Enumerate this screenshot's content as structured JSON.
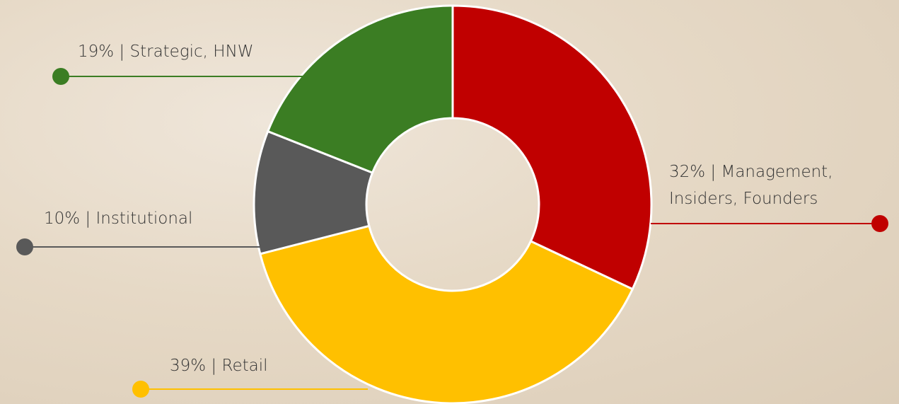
{
  "chart_data": {
    "type": "donut",
    "values": [
      32,
      39,
      10,
      19
    ],
    "value_labels": [
      "32% | Management, Insiders, Founders",
      "39% | Retail",
      "10% | Institutional",
      "19% | Strategic, HNW"
    ],
    "colors": [
      "#c00000",
      "#ffc000",
      "#595959",
      "#3b7d23"
    ]
  }
}
